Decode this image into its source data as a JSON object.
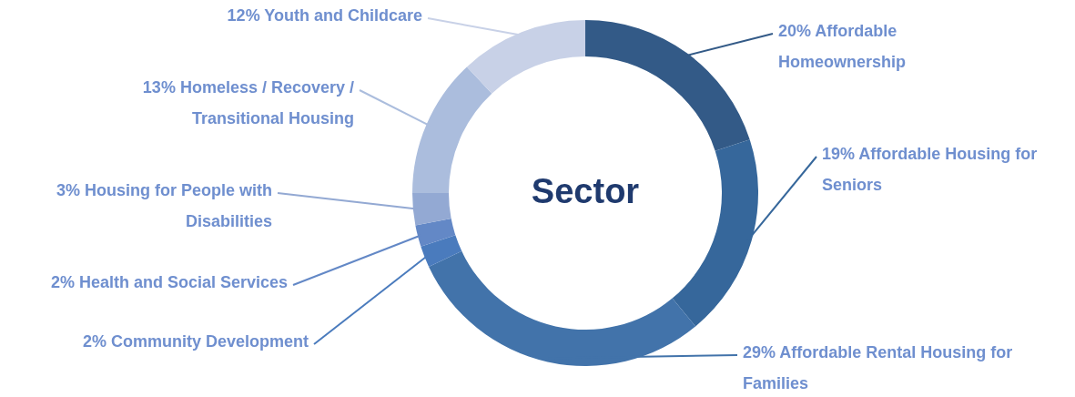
{
  "chart_data": {
    "type": "donut",
    "title": "Sector",
    "categories": [
      "Affordable Homeownership",
      "Affordable Housing for Seniors",
      "Affordable Rental Housing for Families",
      "Community Development",
      "Health and Social Services",
      "Housing for People with Disabilities",
      "Homeless / Recovery / Transitional Housing",
      "Youth and Childcare"
    ],
    "values": [
      20,
      19,
      29,
      2,
      2,
      3,
      13,
      12
    ],
    "value_labels": [
      "20%",
      "19%",
      "29%",
      "2%",
      "2%",
      "3%",
      "13%",
      "12%"
    ],
    "colors": [
      "#335a87",
      "#36679b",
      "#4273aa",
      "#4a7bbd",
      "#6388c6",
      "#93a9d3",
      "#abbddd",
      "#c8d1e7"
    ]
  }
}
